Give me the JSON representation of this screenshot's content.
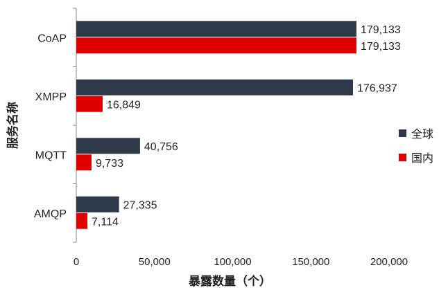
{
  "chart_data": {
    "type": "bar",
    "orientation": "horizontal",
    "categories": [
      "CoAP",
      "XMPP",
      "MQTT",
      "AMQP"
    ],
    "series": [
      {
        "name": "全球",
        "values": [
          179133,
          176937,
          40756,
          27335
        ],
        "color": "#2e3a4a"
      },
      {
        "name": "国内",
        "values": [
          179133,
          16849,
          9733,
          7114
        ],
        "color": "#e00000"
      }
    ],
    "data_labels": [
      [
        "179,133",
        "176,937",
        "40,756",
        "27,335"
      ],
      [
        "179,133",
        "16,849",
        "9,733",
        "7,114"
      ]
    ],
    "xlabel": "暴露数量（个）",
    "ylabel": "服务名称",
    "xlim": [
      0,
      200000
    ],
    "x_ticks": [
      0,
      50000,
      100000,
      150000,
      200000
    ],
    "x_tick_labels": [
      "0",
      "50,000",
      "100,000",
      "150,000",
      "200,000"
    ],
    "grid": false,
    "legend_position": "right"
  }
}
